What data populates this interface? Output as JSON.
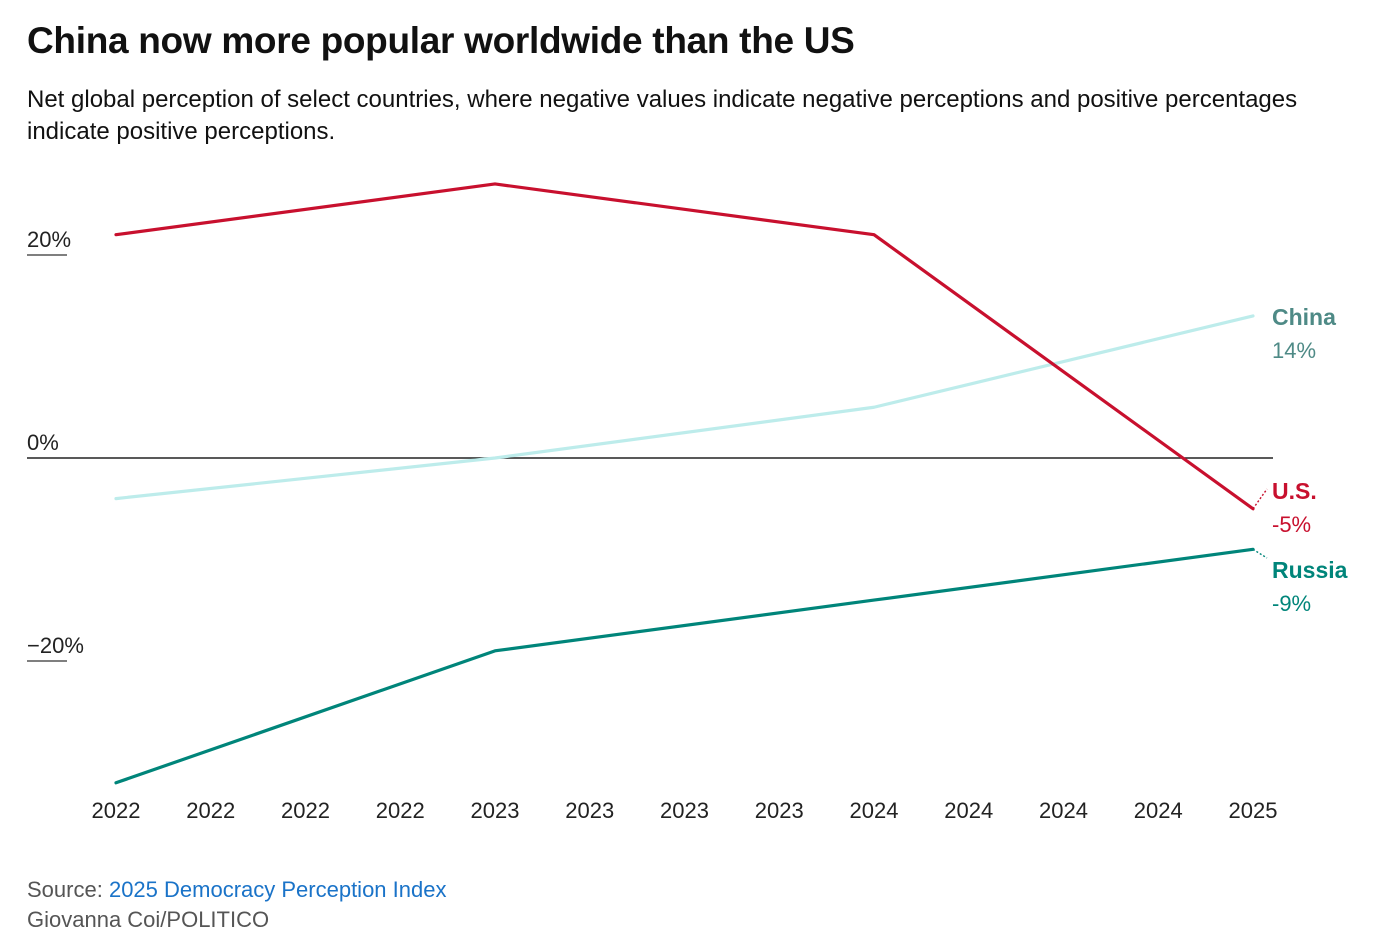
{
  "title": "China now more popular worldwide than the US",
  "subtitle": "Net global perception of select countries, where negative values indicate negative perceptions and positive percentages indicate positive perceptions.",
  "source": {
    "prefix": "Source:",
    "link_text": "2025 Democracy Perception Index"
  },
  "credit": "Giovanna Coi/POLITICO",
  "colors": {
    "us": "#c8102e",
    "china": "#bdeceb",
    "china_label": "#4e8a86",
    "russia": "#00857a",
    "zero_line": "#222222"
  },
  "chart_data": {
    "type": "line",
    "title": "China now more popular worldwide than the US",
    "xlabel": "",
    "ylabel": "",
    "ylim": [
      -32,
      27
    ],
    "y_ticks": [
      {
        "value": 20,
        "label": "20%"
      },
      {
        "value": 0,
        "label": "0%"
      },
      {
        "value": -20,
        "label": "−20%"
      }
    ],
    "x": [
      "2022",
      "2022",
      "2022",
      "2022",
      "2023",
      "2023",
      "2023",
      "2023",
      "2024",
      "2024",
      "2024",
      "2024",
      "2025"
    ],
    "grid": false,
    "legend": "direct end labels",
    "series": [
      {
        "name": "U.S.",
        "end_label": "-5%",
        "color": "#c8102e",
        "points": [
          {
            "x_index": 0,
            "y": 22
          },
          {
            "x_index": 4,
            "y": 27
          },
          {
            "x_index": 8,
            "y": 22
          },
          {
            "x_index": 12,
            "y": -5
          }
        ]
      },
      {
        "name": "China",
        "end_label": "14%",
        "color": "#bdeceb",
        "points": [
          {
            "x_index": 0,
            "y": -4
          },
          {
            "x_index": 4,
            "y": 0
          },
          {
            "x_index": 8,
            "y": 5
          },
          {
            "x_index": 12,
            "y": 14
          }
        ]
      },
      {
        "name": "Russia",
        "end_label": "-9%",
        "color": "#00857a",
        "points": [
          {
            "x_index": 0,
            "y": -32
          },
          {
            "x_index": 4,
            "y": -19
          },
          {
            "x_index": 8,
            "y": -14
          },
          {
            "x_index": 12,
            "y": -9
          }
        ]
      }
    ]
  }
}
